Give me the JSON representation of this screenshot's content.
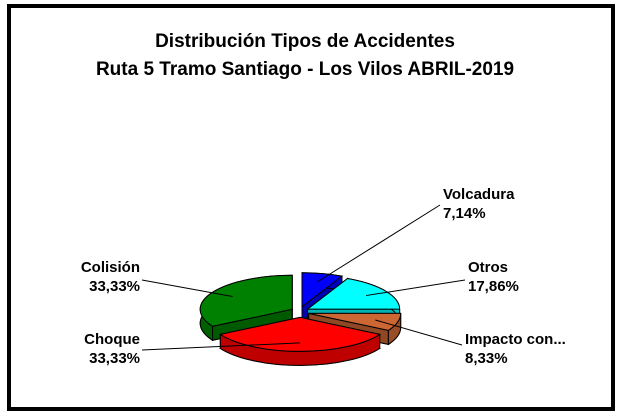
{
  "chart_data": {
    "type": "pie3d",
    "title": "Distribución Tipos de Accidentes",
    "subtitle": "Ruta 5 Tramo Santiago - Los Vilos ABRIL-2019",
    "categories": [
      "Volcadura",
      "Otros",
      "Impacto con...",
      "Choque",
      "Colisión"
    ],
    "values": [
      7.14,
      17.86,
      8.33,
      33.33,
      33.33
    ],
    "value_labels": [
      "7,14%",
      "17,86%",
      "8,33%",
      "33,33%",
      "33,33%"
    ],
    "colors": [
      "#0000ff",
      "#00ffff",
      "#cc6633",
      "#ff0000",
      "#008000"
    ]
  }
}
